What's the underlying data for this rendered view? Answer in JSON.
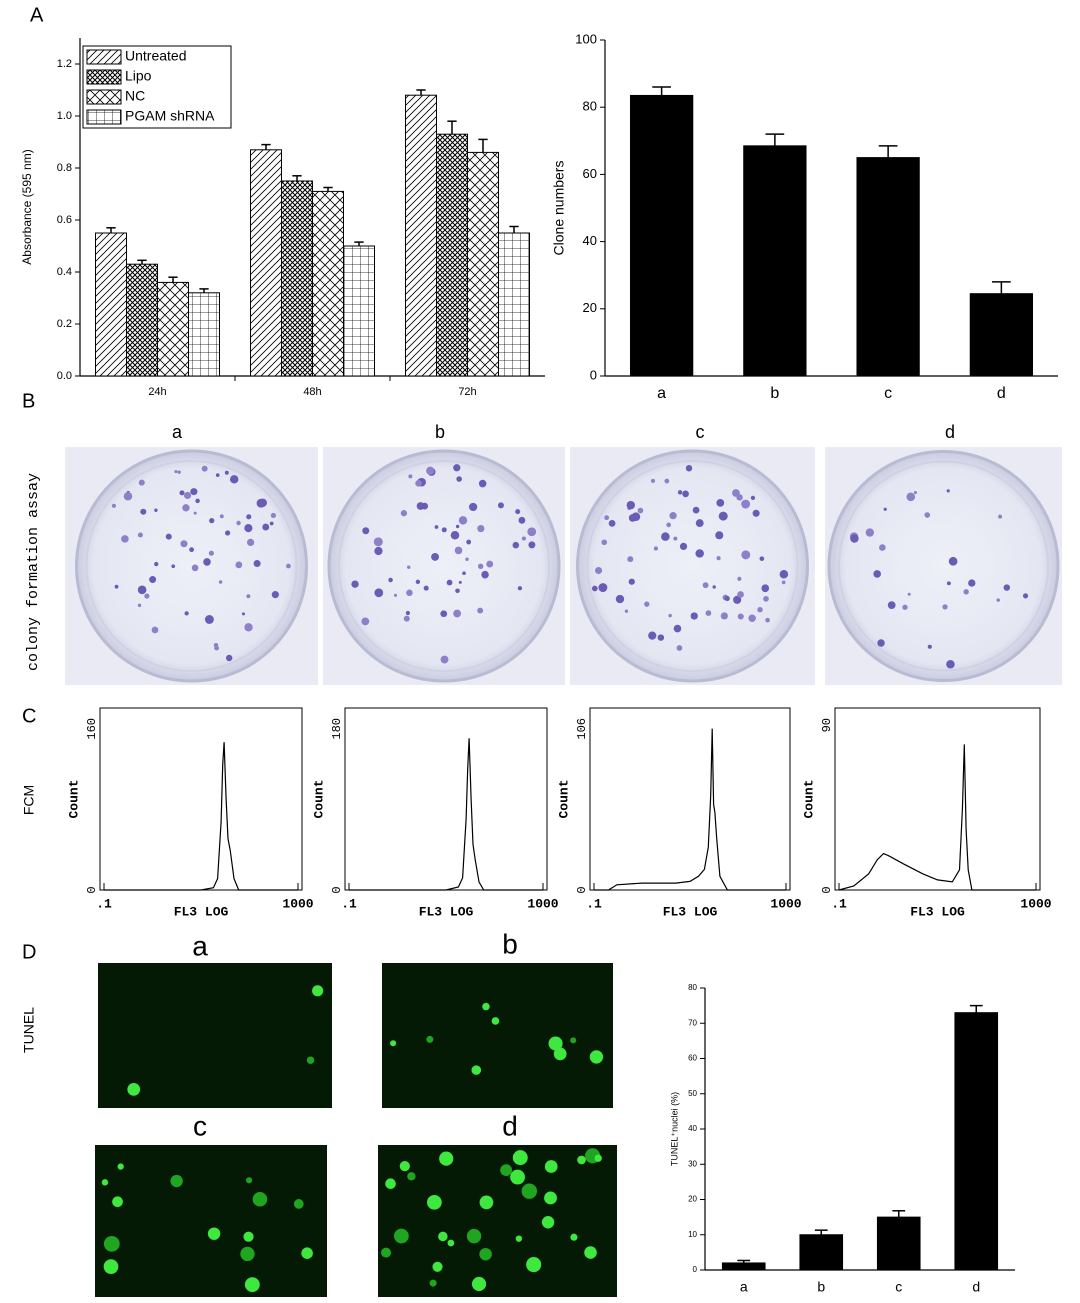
{
  "figure": {
    "panel_labels": [
      "A",
      "B",
      "C",
      "D"
    ],
    "plate_labels": [
      "a",
      "b",
      "c",
      "d"
    ],
    "image_labels": [
      "a",
      "b",
      "c",
      "d"
    ],
    "row_labels": [
      "colony formation assay",
      "FCM",
      "TUNEL"
    ]
  },
  "chart_data": [
    {
      "type": "bar",
      "y_label": "Absorbance (595 nm)",
      "categories": [
        "24h",
        "48h",
        "72h"
      ],
      "legend": "upper-left",
      "series": [
        {
          "name": "Untreated",
          "color": "#000000",
          "hatch": "diagonal",
          "values": [
            0.55,
            0.87,
            1.08
          ],
          "errors": [
            0.02,
            0.02,
            0.02
          ]
        },
        {
          "name": "Lipo",
          "color": "#000000",
          "hatch": "dense-cross",
          "values": [
            0.43,
            0.75,
            0.93
          ],
          "errors": [
            0.015,
            0.02,
            0.05
          ]
        },
        {
          "name": "NC",
          "color": "#000000",
          "hatch": "cross",
          "values": [
            0.36,
            0.71,
            0.86
          ],
          "errors": [
            0.02,
            0.015,
            0.05
          ]
        },
        {
          "name": "PGAM shRNA",
          "color": "#000000",
          "hatch": "grid",
          "values": [
            0.32,
            0.5,
            0.55
          ],
          "errors": [
            0.015,
            0.015,
            0.025
          ]
        }
      ],
      "ylim": [
        0,
        1.3
      ],
      "yticks": [
        {
          "value": 0,
          "label": "0.0"
        },
        0.2,
        0.4,
        0.6,
        0.8,
        {
          "value": 1,
          "label": "1.0"
        },
        1.2
      ]
    },
    {
      "type": "bar",
      "y_label": "Clone numbers",
      "categories": [
        "a",
        "b",
        "c",
        "d"
      ],
      "values": [
        83.5,
        68.5,
        65,
        24.5
      ],
      "errors": [
        2.5,
        3.5,
        3.5,
        3.5
      ],
      "color": "#000000",
      "ylim": [
        0,
        100
      ],
      "yticks": [
        0,
        20,
        40,
        60,
        80,
        100
      ]
    },
    {
      "type": "line",
      "x_label": "FL3 LOG",
      "y_label": "Count",
      "xscale": "log",
      "color": "#000000",
      "x": [
        0.1,
        10,
        18,
        22,
        26,
        28,
        30,
        33,
        36,
        40,
        48,
        60,
        1000
      ],
      "values": [
        0,
        0,
        2,
        10,
        60,
        110,
        130,
        80,
        45,
        35,
        10,
        0,
        0
      ],
      "xlim": [
        0.1,
        1000
      ],
      "xticks": [
        {
          "value": 0.1,
          "label": ".1"
        },
        1000
      ],
      "ylim": [
        0,
        160
      ],
      "yticks": [
        0,
        160
      ]
    },
    {
      "type": "line",
      "x_label": "FL3 LOG",
      "y_label": "Count",
      "xscale": "log",
      "color": "#000000",
      "x": [
        0.1,
        10,
        18,
        22,
        26,
        28,
        30,
        33,
        36,
        40,
        48,
        60,
        1000
      ],
      "values": [
        0,
        0,
        3,
        12,
        70,
        120,
        150,
        90,
        45,
        30,
        8,
        0,
        0
      ],
      "xlim": [
        0.1,
        1000
      ],
      "xticks": [
        {
          "value": 0.1,
          "label": ".1"
        },
        1000
      ],
      "ylim": [
        0,
        180
      ],
      "yticks": [
        0,
        180
      ]
    },
    {
      "type": "line",
      "x_label": "FL3 LOG",
      "y_label": "Count",
      "xscale": "log",
      "color": "#000000",
      "x": [
        0.1,
        0.2,
        0.3,
        1,
        5,
        10,
        15,
        20,
        24,
        27,
        29,
        31,
        33,
        36,
        42,
        60,
        1000
      ],
      "values": [
        0,
        0,
        3,
        4,
        4,
        5,
        8,
        12,
        25,
        55,
        94,
        50,
        45,
        30,
        8,
        0,
        0
      ],
      "xlim": [
        0.1,
        1000
      ],
      "xticks": [
        {
          "value": 0.1,
          "label": ".1"
        },
        1000
      ],
      "ylim": [
        0,
        106
      ],
      "yticks": [
        0,
        106
      ]
    },
    {
      "type": "line",
      "x_label": "FL3 LOG",
      "y_label": "Count",
      "xscale": "log",
      "color": "#000000",
      "x": [
        0.1,
        0.2,
        0.4,
        0.6,
        0.8,
        1,
        2,
        5,
        10,
        20,
        28,
        32,
        35,
        38,
        42,
        50,
        1000
      ],
      "values": [
        0,
        2,
        8,
        15,
        18,
        17,
        13,
        8,
        5,
        4,
        10,
        40,
        72,
        30,
        10,
        0,
        0
      ],
      "xlim": [
        0.1,
        1000
      ],
      "xticks": [
        {
          "value": 0.1,
          "label": ".1"
        },
        1000
      ],
      "ylim": [
        0,
        90
      ],
      "yticks": [
        0,
        90
      ]
    },
    {
      "type": "bar",
      "y_label": "TUNEL⁺nuclei (%)",
      "categories": [
        "a",
        "b",
        "c",
        "d"
      ],
      "values": [
        2,
        10,
        15,
        73
      ],
      "errors": [
        0.7,
        1.3,
        1.8,
        2
      ],
      "color": "#000000",
      "ylim": [
        0,
        80
      ],
      "yticks": [
        0,
        10,
        20,
        30,
        40,
        50,
        60,
        70,
        80
      ]
    }
  ]
}
